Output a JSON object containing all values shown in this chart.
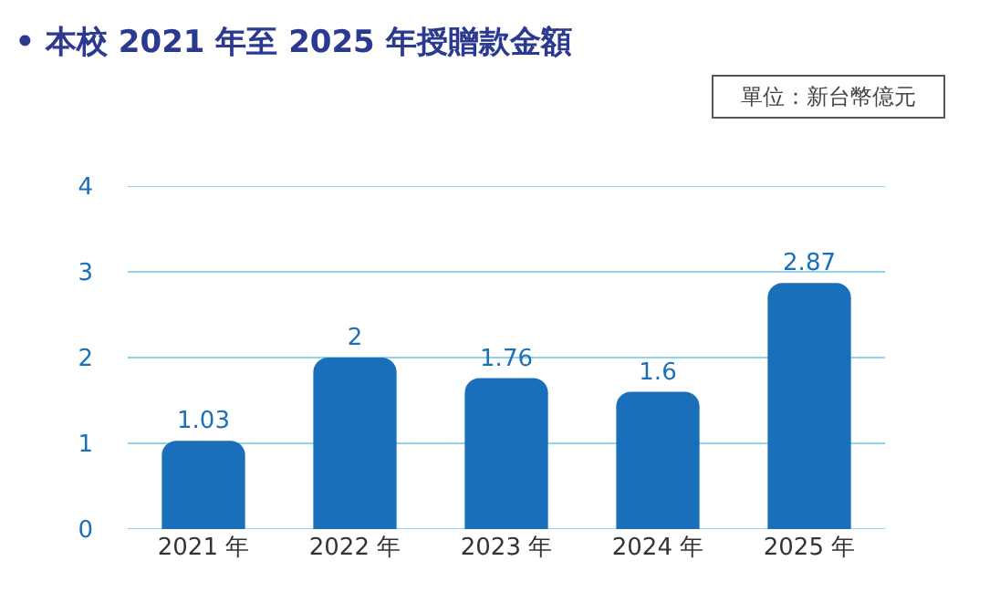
{
  "chart_data": {
    "type": "bar",
    "title": "• 本校 2021 年至 2025 年授贈款金額",
    "annotations": [
      "單位：新台幣億元"
    ],
    "categories": [
      "2021 年",
      "2022 年",
      "2023 年",
      "2024 年",
      "2025 年"
    ],
    "values": [
      1.03,
      2,
      1.76,
      1.6,
      2.87
    ],
    "color": "#1a6fba",
    "ylim": [
      0,
      4
    ],
    "yticks": [
      0,
      1,
      2,
      3,
      4
    ],
    "grid": "y",
    "data_labels": true
  }
}
